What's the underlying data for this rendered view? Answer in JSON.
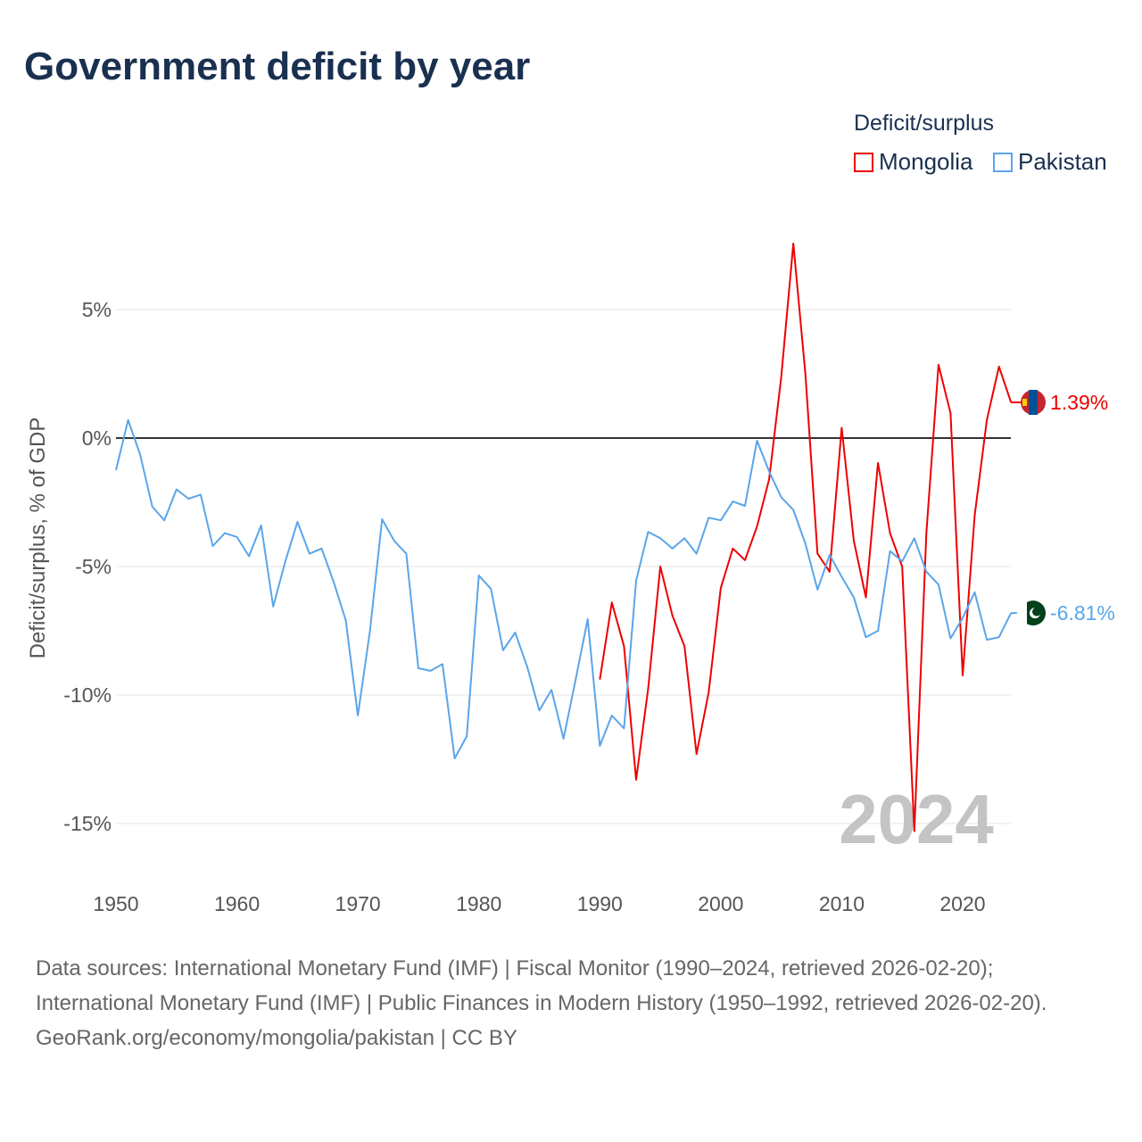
{
  "chart_data": {
    "type": "line",
    "title": "Government deficit by year",
    "ylabel": "Deficit/surplus, % of GDP",
    "xlabel": "",
    "legend_title": "Deficit/surplus",
    "legend_position": "top-right",
    "xlim": [
      1950,
      2024
    ],
    "ylim": [
      -16.5,
      8.5
    ],
    "x_ticks": [
      1950,
      1960,
      1970,
      1980,
      1990,
      2000,
      2010,
      2020
    ],
    "x_tick_labels": [
      "1950",
      "1960",
      "1970",
      "1980",
      "1990",
      "2000",
      "2010",
      "2020"
    ],
    "y_ticks": [
      5,
      0,
      -5,
      -10,
      -15
    ],
    "y_tick_labels": [
      "5%",
      "0%",
      "-5%",
      "-10%",
      "-15%"
    ],
    "year_watermark": "2024",
    "grid": true,
    "series": [
      {
        "name": "Mongolia",
        "color": "#ee0000",
        "end_label": "1.39%",
        "flag": "mongolia-flag",
        "start_year": 1990,
        "values": [
          -9.4,
          -6.4,
          -8.1,
          -13.3,
          -9.75,
          -5.0,
          -6.9,
          -8.1,
          -12.3,
          -9.9,
          -5.83,
          -4.3,
          -4.75,
          -3.44,
          -1.6,
          2.36,
          7.57,
          2.5,
          -4.5,
          -5.2,
          0.4,
          -4.0,
          -6.2,
          -0.97,
          -3.7,
          -5.0,
          -15.3,
          -3.7,
          2.85,
          0.97,
          -9.24,
          -3.0,
          0.7,
          2.78,
          1.39
        ]
      },
      {
        "name": "Pakistan",
        "color": "#5aa5ea",
        "end_label": "-6.81%",
        "flag": "pakistan-flag",
        "start_year": 1950,
        "values": [
          -1.25,
          0.7,
          -0.65,
          -2.67,
          -3.2,
          -2.0,
          -2.36,
          -2.2,
          -4.2,
          -3.7,
          -3.85,
          -4.6,
          -3.4,
          -6.56,
          -4.8,
          -3.26,
          -4.5,
          -4.3,
          -5.6,
          -7.1,
          -10.8,
          -7.5,
          -3.16,
          -4.0,
          -4.5,
          -8.96,
          -9.06,
          -8.8,
          -12.47,
          -11.6,
          -5.35,
          -5.87,
          -8.26,
          -7.57,
          -8.9,
          -10.6,
          -9.8,
          -11.7,
          -9.4,
          -7.05,
          -11.98,
          -10.8,
          -11.3,
          -5.55,
          -3.65,
          -3.9,
          -4.3,
          -3.9,
          -4.5,
          -3.1,
          -3.2,
          -2.47,
          -2.64,
          -0.1,
          -1.3,
          -2.3,
          -2.8,
          -4.1,
          -5.9,
          -4.55,
          -5.4,
          -6.2,
          -7.75,
          -7.5,
          -4.4,
          -4.8,
          -3.9,
          -5.2,
          -5.7,
          -7.8,
          -7.0,
          -6.0,
          -7.85,
          -7.75,
          -6.81
        ]
      }
    ]
  },
  "footer": {
    "sources": "Data sources: International Monetary Fund (IMF) | Fiscal Monitor (1990–2024, retrieved 2026-02-20); International Monetary Fund (IMF) | Public Finances in Modern History (1950–1992, retrieved 2026-02-20).",
    "credit": "GeoRank.org/economy/mongolia/pakistan | CC BY"
  }
}
